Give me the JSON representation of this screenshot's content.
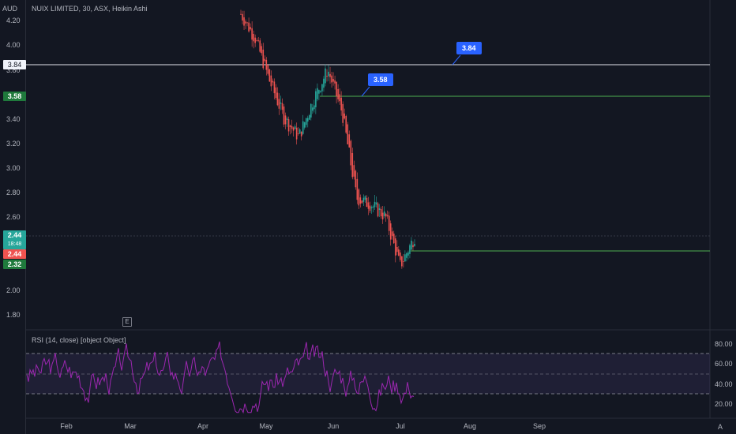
{
  "header": {
    "currency": "AUD",
    "title": "NUIX LIMITED, 30, ASX, Heikin Ashi"
  },
  "price_axis": {
    "ticks": [
      "4.20",
      "4.00",
      "3.80",
      "3.40",
      "3.20",
      "3.00",
      "2.80",
      "2.60",
      "2.00",
      "1.80"
    ]
  },
  "price_tags": {
    "white": "3.84",
    "green_top": "3.58",
    "current_price": "2.44",
    "current_time": "18:48",
    "red": "2.44",
    "green_bottom": "2.32"
  },
  "callouts": {
    "upper": "3.84",
    "lower": "3.58"
  },
  "rsi": {
    "title": "RSI (14, close) [object Object]",
    "axis_ticks": [
      "80.00",
      "60.00",
      "40.00",
      "20.00"
    ]
  },
  "time_axis": {
    "labels": [
      "Feb",
      "Mar",
      "Apr",
      "May",
      "Jun",
      "Jul",
      "Aug",
      "Sep"
    ]
  },
  "markers": {
    "event": "E",
    "auto_scale": "A"
  },
  "colors": {
    "background": "#131722",
    "candle_up": "#26a69a",
    "candle_down": "#ef5350",
    "rsi_line": "#9c27b0",
    "rsi_band": "#7e57c2",
    "level_line": "#4caf50",
    "callout": "#2962ff"
  },
  "chart_data": {
    "type": "candlestick",
    "title": "NUIX LIMITED, 30, ASX, Heikin Ashi",
    "ylabel": "AUD",
    "ylim": [
      1.7,
      4.3
    ],
    "x_labels": [
      "Feb",
      "Mar",
      "Apr",
      "May",
      "Jun",
      "Jul",
      "Aug",
      "Sep"
    ],
    "key_levels": [
      3.84,
      3.58,
      2.32
    ],
    "last_price": 2.44,
    "price_path": [
      {
        "t": "Apr-end",
        "price": 4.25
      },
      {
        "t": "May-early",
        "price": 4.05
      },
      {
        "t": "May-mid",
        "price": 3.7
      },
      {
        "t": "May-mid2",
        "price": 3.4
      },
      {
        "t": "May-late",
        "price": 3.25
      },
      {
        "t": "May-late2",
        "price": 3.55
      },
      {
        "t": "May-end",
        "price": 3.8
      },
      {
        "t": "Jun-early",
        "price": 3.45
      },
      {
        "t": "Jun-early2",
        "price": 2.75
      },
      {
        "t": "Jun-mid",
        "price": 2.7
      },
      {
        "t": "Jun-late",
        "price": 2.6
      },
      {
        "t": "Jul-early",
        "price": 2.2
      },
      {
        "t": "Jul-early2",
        "price": 2.44
      }
    ],
    "rsi_levels": [
      70,
      50,
      30
    ],
    "rsi_ylim": [
      10,
      90
    ]
  }
}
